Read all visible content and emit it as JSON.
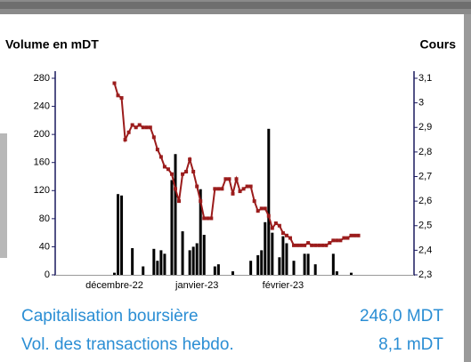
{
  "chart_data": {
    "type": "bar_line",
    "y_label": "Volume en mDT",
    "y2_label": "Cours",
    "categories": [
      null,
      null,
      null,
      null,
      null,
      null,
      null,
      null,
      null,
      null,
      null,
      null,
      null,
      null,
      null,
      null,
      "décembre-22",
      null,
      null,
      null,
      null,
      null,
      null,
      null,
      null,
      null,
      null,
      null,
      null,
      null,
      null,
      null,
      null,
      null,
      null,
      null,
      null,
      null,
      null,
      "janvier-23",
      null,
      null,
      null,
      null,
      null,
      null,
      null,
      null,
      null,
      null,
      null,
      null,
      null,
      null,
      null,
      null,
      null,
      null,
      null,
      null,
      null,
      null,
      null,
      "février-23",
      null,
      null,
      null,
      null,
      null,
      null,
      null,
      null,
      null,
      null,
      null,
      null,
      null,
      null,
      null,
      null,
      null,
      null,
      null,
      null,
      null,
      null,
      null,
      null,
      null,
      null,
      null,
      null,
      null,
      null,
      null,
      null,
      null,
      null,
      null,
      null
    ],
    "series": [
      {
        "type": "bar",
        "color": "#000000",
        "values": [
          null,
          null,
          null,
          null,
          null,
          null,
          null,
          null,
          null,
          null,
          null,
          null,
          null,
          null,
          null,
          null,
          3,
          115,
          113,
          null,
          null,
          38,
          null,
          null,
          12,
          null,
          null,
          37,
          20,
          35,
          30,
          null,
          135,
          172,
          null,
          62,
          null,
          35,
          40,
          45,
          122,
          57,
          null,
          null,
          12,
          15,
          null,
          null,
          null,
          5,
          null,
          null,
          null,
          null,
          20,
          null,
          28,
          35,
          75,
          208,
          60,
          null,
          25,
          55,
          45,
          null,
          20,
          null,
          null,
          30,
          30,
          null,
          15,
          null,
          null,
          null,
          null,
          30,
          5,
          null,
          null,
          null,
          3,
          null,
          null,
          null,
          null,
          null,
          null,
          null,
          null,
          null,
          null,
          null,
          null,
          null,
          null,
          null,
          null,
          null
        ]
      },
      {
        "type": "line",
        "axis": "y2",
        "color": "#9b1c1c",
        "values": [
          null,
          null,
          null,
          null,
          null,
          null,
          null,
          null,
          null,
          null,
          null,
          null,
          null,
          null,
          null,
          null,
          3.08,
          3.03,
          3.02,
          2.85,
          2.88,
          2.91,
          2.9,
          2.91,
          2.9,
          2.9,
          2.9,
          2.86,
          2.81,
          2.78,
          2.74,
          2.73,
          2.71,
          2.65,
          2.6,
          2.71,
          2.72,
          2.77,
          2.72,
          2.66,
          2.6,
          2.53,
          2.53,
          2.53,
          2.65,
          2.65,
          2.65,
          2.69,
          2.69,
          2.63,
          2.69,
          2.64,
          2.65,
          2.66,
          2.66,
          2.6,
          2.56,
          2.57,
          2.57,
          2.54,
          2.49,
          2.51,
          2.5,
          2.47,
          2.46,
          2.45,
          2.42,
          2.42,
          2.42,
          2.42,
          2.43,
          2.42,
          2.42,
          2.42,
          2.42,
          2.42,
          2.43,
          2.44,
          2.44,
          2.44,
          2.45,
          2.45,
          2.46,
          2.46,
          2.46,
          null,
          null,
          null,
          null,
          null,
          null,
          null,
          null,
          null,
          null,
          null,
          null,
          null,
          null,
          null
        ]
      }
    ],
    "ylim": [
      0,
      280
    ],
    "yticks": [
      0,
      40,
      80,
      120,
      160,
      200,
      240,
      280
    ],
    "y2lim": [
      2.3,
      3.1
    ],
    "y2ticks": [
      {
        "value": 2.3,
        "label": "2,3"
      },
      {
        "value": 2.4,
        "label": "2,4"
      },
      {
        "value": 2.5,
        "label": "2,5"
      },
      {
        "value": 2.6,
        "label": "2,6"
      },
      {
        "value": 2.7,
        "label": "2,7"
      },
      {
        "value": 2.8,
        "label": "2,8"
      },
      {
        "value": 2.9,
        "label": "2,9"
      },
      3,
      {
        "value": 3.1,
        "label": "3,1"
      }
    ]
  },
  "summary": [
    {
      "label": "Capitalisation boursière",
      "value": "246,0 MDT"
    },
    {
      "label": "Vol. des transactions hebdo.",
      "value": "8,1 mDT"
    }
  ]
}
